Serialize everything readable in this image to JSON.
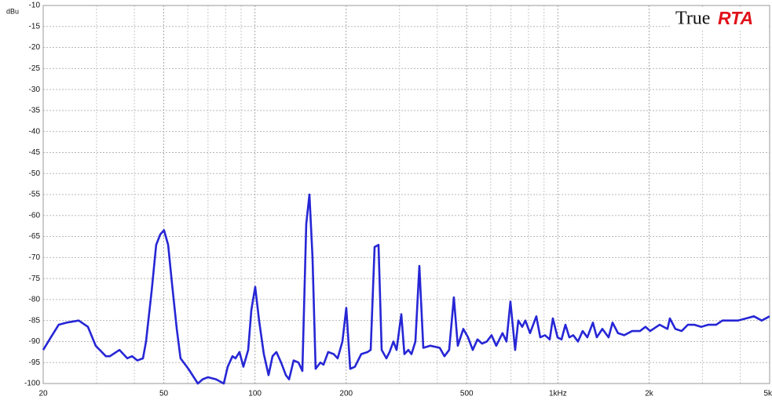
{
  "chart_data": {
    "type": "line",
    "brand": [
      "True",
      "RTA"
    ],
    "ylabel": "dBu",
    "xscale": "log",
    "grid": true,
    "color": "#2626d6",
    "xlim": [
      20,
      5000
    ],
    "ylim": [
      -100,
      -10
    ],
    "xticks": [
      20,
      50,
      100,
      200,
      500,
      {
        "value": 1000,
        "label": "1kHz"
      },
      {
        "value": 2000,
        "label": "2k"
      },
      {
        "value": 5000,
        "label": "5k"
      }
    ],
    "xminorticks": [
      30,
      40,
      60,
      70,
      80,
      90,
      300,
      400,
      600,
      700,
      800,
      900,
      3000,
      4000
    ],
    "yticks": [
      -10,
      -15,
      -20,
      -25,
      -30,
      -35,
      -40,
      -45,
      -50,
      -55,
      -60,
      -65,
      -70,
      -75,
      -80,
      -85,
      -90,
      -95,
      -100
    ],
    "x": [
      20,
      21.2,
      22.5,
      23.9,
      26.2,
      28.1,
      29.8,
      32.2,
      33.2,
      35.7,
      37.9,
      39.3,
      40.9,
      42.7,
      43.7,
      45.6,
      47.2,
      48.7,
      50.1,
      51.7,
      53.2,
      55.2,
      56.8,
      60.3,
      64.8,
      67.2,
      70.0,
      74.4,
      78.9,
      81.3,
      84.3,
      86.3,
      88.9,
      91.6,
      95.0,
      97.3,
      100.2,
      103.2,
      107.0,
      110.9,
      114.3,
      117.7,
      122.0,
      126.5,
      129.6,
      134.2,
      139.2,
      143.4,
      147.7,
      151.3,
      154.9,
      158.6,
      164.4,
      168.4,
      174.5,
      182.0,
      187.5,
      194.4,
      200.2,
      206.3,
      213.8,
      224.3,
      235.3,
      241.0,
      248.3,
      255.8,
      262.0,
      271.6,
      278.2,
      286.5,
      293.4,
      304.2,
      311.4,
      320.9,
      328.6,
      338.6,
      348.9,
      359.5,
      379.4,
      407.4,
      422.2,
      437.6,
      453.5,
      467.3,
      487.3,
      505.1,
      523.5,
      542.6,
      562.3,
      582.8,
      604,
      626,
      656.5,
      676.5,
      697.1,
      722.6,
      740.1,
      762.5,
      780.9,
      809.3,
      848.8,
      874.6,
      906.6,
      939.6,
      962.4,
      997.4,
      1028,
      1059,
      1091,
      1124,
      1165,
      1207,
      1251,
      1305,
      1344,
      1402,
      1470,
      1515,
      1579,
      1656,
      1758,
      1866,
      1946,
      2017,
      2166,
      2300,
      2342,
      2442,
      2562,
      2686,
      2818,
      2972,
      3136,
      3330,
      3492,
      3708,
      3936,
      4178,
      4436,
      4708,
      4998
    ],
    "values": [
      -92,
      -89,
      -86,
      -85.5,
      -85,
      -86.5,
      -91,
      -93.5,
      -93.5,
      -92,
      -94,
      -93.5,
      -94.5,
      -94,
      -90,
      -78,
      -67,
      -64.5,
      -63.5,
      -67,
      -76,
      -87,
      -94,
      -96.5,
      -100,
      -99,
      -98.5,
      -99,
      -100,
      -96,
      -93.5,
      -94,
      -92.5,
      -96,
      -92,
      -82.5,
      -77,
      -85,
      -93,
      -98,
      -93.5,
      -92.5,
      -95,
      -98,
      -99,
      -94.5,
      -95,
      -97,
      -62,
      -55,
      -70,
      -96.5,
      -95,
      -95.5,
      -92.5,
      -93,
      -94,
      -90,
      -82,
      -96.5,
      -96,
      -93,
      -92.5,
      -92,
      -67.5,
      -67,
      -92,
      -94,
      -92.5,
      -90,
      -92,
      -83.5,
      -93,
      -92,
      -93,
      -90,
      -72,
      -91.5,
      -91,
      -91.5,
      -93.5,
      -92,
      -79.5,
      -91,
      -87,
      -89,
      -92,
      -89.5,
      -90.5,
      -90,
      -88.5,
      -91,
      -88,
      -90,
      -80.5,
      -92,
      -85,
      -86.5,
      -85,
      -88,
      -84,
      -89,
      -88.5,
      -89.5,
      -84.5,
      -89,
      -89.5,
      -86,
      -89,
      -88.5,
      -90,
      -87.5,
      -89,
      -85.5,
      -89,
      -87,
      -89,
      -85.5,
      -88,
      -88.5,
      -87.5,
      -87.5,
      -86.5,
      -87.5,
      -86,
      -87,
      -84.5,
      -87,
      -87.5,
      -86,
      -86,
      -86.5,
      -86,
      -86,
      -85,
      -85,
      -85,
      -84.5,
      -84,
      -85,
      -84
    ]
  }
}
